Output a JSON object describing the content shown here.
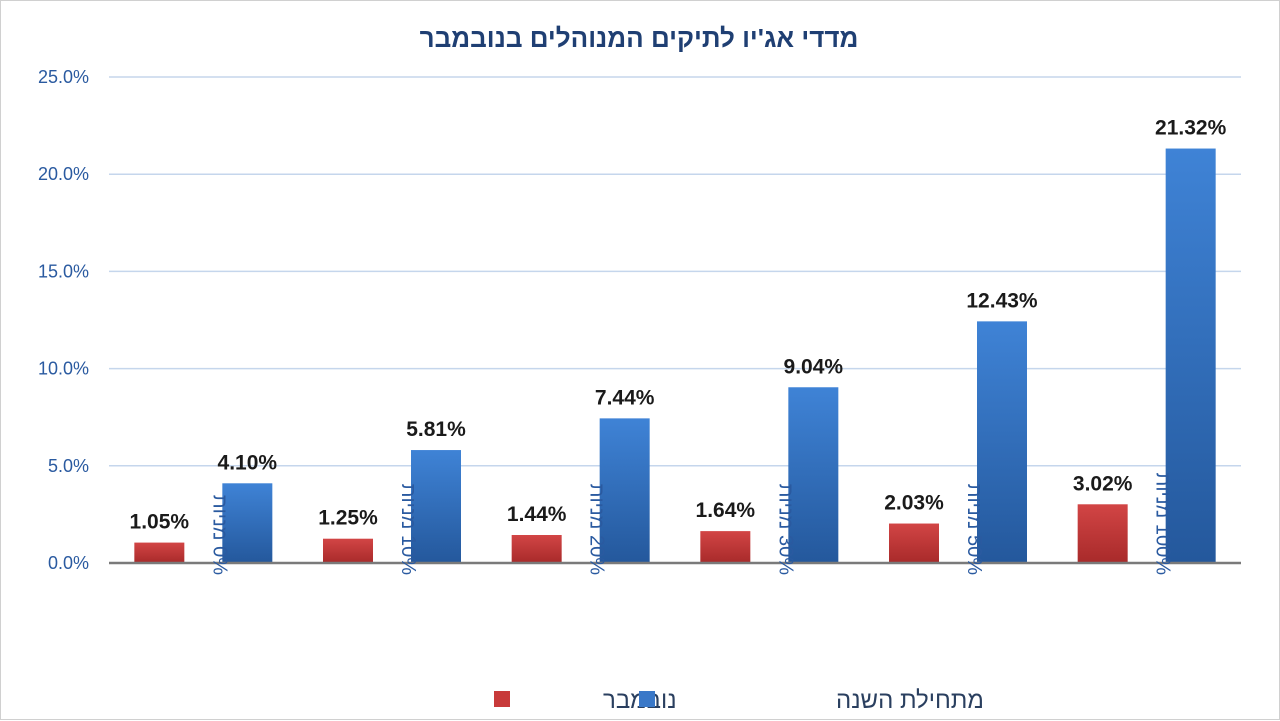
{
  "chart_data": {
    "type": "bar",
    "title": "מדדי אג'יו לתיקים המנוהלים  בנובמבר",
    "categories": [
      "0% מניות",
      "10% מניות",
      "20% מניות",
      "30% מניות",
      "50% מניות",
      "100% מניות"
    ],
    "series": [
      {
        "name": "נובמבר",
        "values": [
          1.05,
          1.25,
          1.44,
          1.64,
          2.03,
          3.02
        ],
        "labels": [
          "1.05%",
          "1.25%",
          "1.44%",
          "1.64%",
          "2.03%",
          "3.02%"
        ],
        "color": "#c83a3a"
      },
      {
        "name": "מתחילת השנה",
        "values": [
          4.1,
          5.81,
          7.44,
          9.04,
          12.43,
          21.32
        ],
        "labels": [
          "4.10%",
          "5.81%",
          "7.44%",
          "9.04%",
          "12.43%",
          "21.32%"
        ],
        "color": "#3a78c8"
      }
    ],
    "ylim": [
      0,
      25
    ],
    "yticks": [
      "0.0%",
      "5.0%",
      "10.0%",
      "15.0%",
      "20.0%",
      "25.0%"
    ],
    "grid": true,
    "legend_position": "bottom",
    "xlabel": "",
    "ylabel": ""
  }
}
